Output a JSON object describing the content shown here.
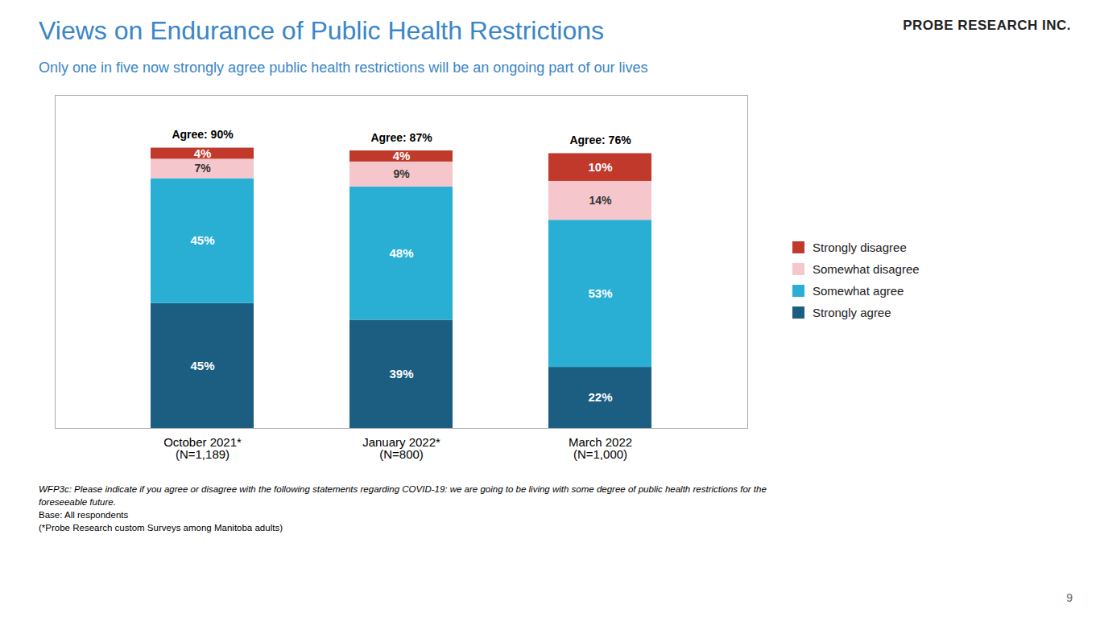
{
  "chart_data": {
    "type": "bar",
    "stacked": true,
    "title": "Views on Endurance of Public Health Restrictions",
    "subtitle": "Only one in five now strongly agree public health restrictions will be an ongoing part of our lives",
    "categories": [
      "October 2021*\n(N=1,189)",
      "January 2022*\n(N=800)",
      "March 2022\n(N=1,000)"
    ],
    "series": [
      {
        "name": "Strongly agree",
        "color": "#1b5e82",
        "values": [
          45,
          39,
          22
        ],
        "value_labels": [
          "45%",
          "39%",
          "22%"
        ]
      },
      {
        "name": "Somewhat agree",
        "color": "#29afd4",
        "values": [
          45,
          48,
          53
        ],
        "value_labels": [
          "45%",
          "48%",
          "53%"
        ]
      },
      {
        "name": "Somewhat disagree",
        "color": "#f5c6cb",
        "values": [
          7,
          9,
          14
        ],
        "value_labels": [
          "7%",
          "9%",
          "14%"
        ]
      },
      {
        "name": "Strongly disagree",
        "color": "#c0392b",
        "values": [
          4,
          4,
          10
        ],
        "value_labels": [
          "4%",
          "4%",
          "10%"
        ]
      }
    ],
    "annotations": [
      "Agree: 90%",
      "Agree: 87%",
      "Agree: 76%"
    ],
    "ylim": [
      0,
      120
    ],
    "tick_labels": "x",
    "data_labels": true,
    "legend": "right",
    "grid": false,
    "footnotes": [
      "WFP3c: Please indicate if you agree or disagree with the following statements regarding COVID-19: we are going to be living with some degree of public health restrictions for the",
      "foreseeable future.",
      "Base: All respondents",
      "(*Probe Research custom Surveys among Manitoba adults)"
    ],
    "page_number": "9",
    "logo": "PROBE RESEARCH INC."
  }
}
